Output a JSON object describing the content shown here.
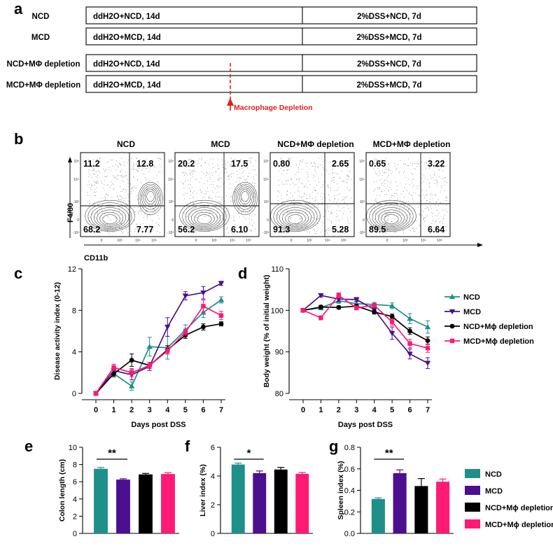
{
  "colors": {
    "ncd": "#1f8f8a",
    "mcd": "#4b0f8f",
    "ncd_dep": "#000000",
    "mcd_dep": "#ff1a75",
    "annot": "#e41e1e",
    "plot_bg": "#ffffff"
  },
  "panel_labels": {
    "a": "a",
    "b": "b",
    "c": "c",
    "d": "d",
    "e": "e",
    "f": "f",
    "g": "g"
  },
  "panel_a": {
    "rows": [
      {
        "label": "NCD",
        "left": "ddH2O+NCD, 14d",
        "right": "2%DSS+NCD, 7d"
      },
      {
        "label": "MCD",
        "left": "ddH2O+MCD, 14d",
        "right": "2%DSS+MCD, 7d"
      },
      {
        "label": "NCD+MΦ depletion",
        "left": "ddH2O+NCD, 14d",
        "right": "2%DSS+NCD, 7d"
      },
      {
        "label": "MCD+MΦ depletion",
        "left": "ddH2O+MCD, 14d",
        "right": "2%DSS+MCD, 7d"
      }
    ],
    "annotation": "Macrophage Depletion"
  },
  "panel_b": {
    "ylabel": "F4/80",
    "xlabel": "CD11b",
    "y_ticks": [
      "10⁵",
      "10⁴",
      "10³",
      "0",
      "-10³"
    ],
    "x_ticks": [
      "0",
      "10³",
      "10⁴",
      "10⁵"
    ],
    "plots": [
      {
        "title": "NCD",
        "q": [
          "11.2",
          "12.8",
          "68.2",
          "7.77"
        ]
      },
      {
        "title": "MCD",
        "q": [
          "20.2",
          "17.5",
          "56.2",
          "6.10"
        ]
      },
      {
        "title": "NCD+MΦ depletion",
        "q": [
          "0.80",
          "2.65",
          "91.3",
          "5.28"
        ]
      },
      {
        "title": "MCD+MΦ depletion",
        "q": [
          "0.65",
          "3.22",
          "89.5",
          "6.64"
        ]
      }
    ]
  },
  "chart_data": [
    {
      "panel": "c",
      "type": "line",
      "xlabel": "Days post DSS",
      "ylabel": "Disease activity index (0-12)",
      "x": [
        0,
        1,
        2,
        3,
        4,
        5,
        6,
        7
      ],
      "xlim": [
        0,
        7
      ],
      "ylim": [
        0,
        12
      ],
      "yticks": [
        0,
        4,
        8,
        12
      ],
      "series": [
        {
          "name": "NCD",
          "marker": "triangle-up",
          "values": [
            0,
            1.9,
            0.7,
            4.5,
            4.4,
            6.1,
            7.8,
            9.0
          ],
          "err": [
            0,
            0.3,
            0.4,
            0.9,
            1.1,
            0.5,
            0.5,
            0.3
          ]
        },
        {
          "name": "MCD",
          "marker": "triangle-down",
          "values": [
            0,
            2.2,
            1.8,
            2.6,
            6.4,
            9.4,
            9.7,
            10.6
          ],
          "err": [
            0,
            0.4,
            0.5,
            0.4,
            0.9,
            0.4,
            0.6,
            0.2
          ]
        },
        {
          "name": "NCD+Mɸ depletion",
          "marker": "circle",
          "values": [
            0,
            1.9,
            3.2,
            2.7,
            4.2,
            5.6,
            6.4,
            6.7
          ],
          "err": [
            0,
            0.3,
            0.6,
            0.3,
            0.4,
            0.3,
            0.3,
            0.2
          ]
        },
        {
          "name": "MCD+Mɸ depletion",
          "marker": "square",
          "values": [
            0,
            2.5,
            2.0,
            2.7,
            4.1,
            5.9,
            8.4,
            7.5
          ],
          "err": [
            0,
            0.3,
            0.4,
            0.3,
            0.3,
            0.3,
            0.6,
            0.4
          ]
        }
      ]
    },
    {
      "panel": "d",
      "type": "line",
      "xlabel": "Days post DSS",
      "ylabel": "Body weight (% of initial weight)",
      "x": [
        0,
        1,
        2,
        3,
        4,
        5,
        6,
        7
      ],
      "xlim": [
        0,
        7
      ],
      "ylim": [
        80,
        110
      ],
      "yticks": [
        80,
        90,
        100,
        110
      ],
      "series": [
        {
          "name": "NCD",
          "marker": "triangle-up",
          "values": [
            100,
            100.6,
            102.3,
            101.6,
            101.4,
            101.1,
            98,
            96
          ],
          "err": [
            0,
            0.5,
            0.6,
            0.6,
            0.5,
            0.7,
            1.2,
            1.5
          ]
        },
        {
          "name": "MCD",
          "marker": "triangle-down",
          "values": [
            100,
            103.6,
            102.7,
            102.6,
            100.2,
            94.5,
            89.5,
            87.3
          ],
          "err": [
            0,
            0.4,
            0.5,
            0.5,
            0.8,
            1.5,
            1.2,
            1.3
          ]
        },
        {
          "name": "NCD+Mɸ depletion",
          "marker": "circle",
          "values": [
            100,
            100.8,
            100.7,
            101.0,
            99.6,
            98.5,
            95.0,
            92.7
          ],
          "err": [
            0,
            0.4,
            0.4,
            0.4,
            0.5,
            0.6,
            0.8,
            0.9
          ]
        },
        {
          "name": "MCD+Mɸ depletion",
          "marker": "square",
          "values": [
            100,
            98.2,
            103.6,
            100.6,
            101.2,
            97.2,
            92,
            90.9
          ],
          "err": [
            0,
            0.5,
            0.6,
            0.5,
            0.5,
            0.8,
            1.0,
            1.0
          ]
        }
      ],
      "legend": [
        "NCD",
        "MCD",
        "NCD+Mɸ depletion",
        "MCD+Mɸ depletion"
      ]
    },
    {
      "panel": "e",
      "type": "bar",
      "ylabel": "Colon length (cm)",
      "categories": [
        "NCD",
        "MCD",
        "NCD+Mɸ depletion",
        "MCD+Mɸ depletion"
      ],
      "values": [
        7.5,
        6.25,
        6.85,
        6.9
      ],
      "err": [
        0.15,
        0.1,
        0.12,
        0.15
      ],
      "ylim": [
        0,
        10
      ],
      "yticks": [
        0,
        2,
        4,
        6,
        8,
        10
      ],
      "significance": "**"
    },
    {
      "panel": "f",
      "type": "bar",
      "ylabel": "Liver index (%)",
      "categories": [
        "NCD",
        "MCD",
        "NCD+Mɸ depletion",
        "MCD+Mɸ depletion"
      ],
      "values": [
        4.8,
        4.2,
        4.45,
        4.15
      ],
      "err": [
        0.1,
        0.15,
        0.15,
        0.1
      ],
      "ylim": [
        0,
        6
      ],
      "yticks": [
        0,
        2,
        4,
        6
      ],
      "significance": "*"
    },
    {
      "panel": "g",
      "type": "bar",
      "ylabel": "Spleen index (%)",
      "categories": [
        "NCD",
        "MCD",
        "NCD+Mɸ depletion",
        "MCD+Mɸ depletion"
      ],
      "values": [
        0.32,
        0.56,
        0.44,
        0.48
      ],
      "err": [
        0.01,
        0.03,
        0.07,
        0.025
      ],
      "ylim": [
        0,
        0.8
      ],
      "yticks": [
        0.0,
        0.2,
        0.4,
        0.6,
        0.8
      ],
      "significance": "**",
      "legend": [
        "NCD",
        "MCD",
        "NCD+Mɸ depletion",
        "MCD+Mɸ depletion"
      ]
    }
  ]
}
